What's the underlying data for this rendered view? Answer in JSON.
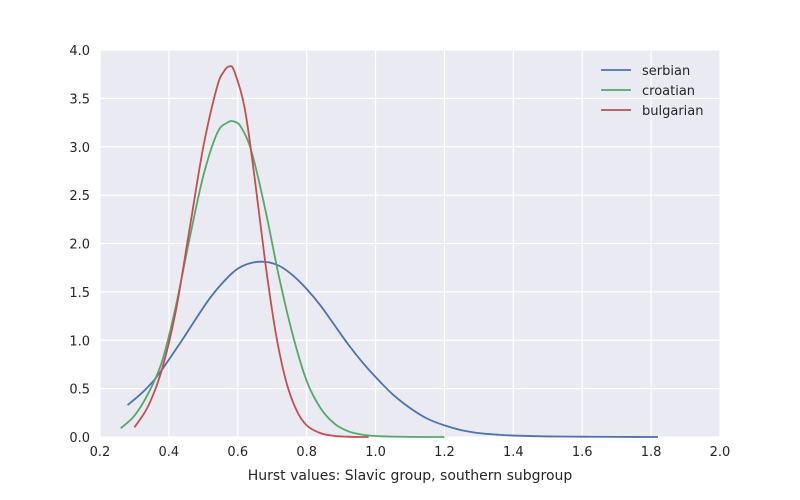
{
  "chart_data": {
    "type": "line",
    "title": "",
    "xlabel": "Hurst values: Slavic group, southern subgroup",
    "ylabel": "",
    "xlim": [
      0.2,
      2.0
    ],
    "ylim": [
      0.0,
      4.0
    ],
    "xticks": [
      "0.2",
      "0.4",
      "0.6",
      "0.8",
      "1.0",
      "1.2",
      "1.4",
      "1.6",
      "1.8",
      "2.0"
    ],
    "yticks": [
      "0.0",
      "0.5",
      "1.0",
      "1.5",
      "2.0",
      "2.5",
      "3.0",
      "3.5",
      "4.0"
    ],
    "grid": true,
    "background": "#eaeaf2",
    "legend_position": "top-right",
    "series": [
      {
        "name": "serbian",
        "color": "#4c72b0",
        "x": [
          0.28,
          0.32,
          0.36,
          0.4,
          0.44,
          0.48,
          0.52,
          0.56,
          0.6,
          0.64,
          0.68,
          0.72,
          0.76,
          0.8,
          0.84,
          0.88,
          0.92,
          0.96,
          1.0,
          1.05,
          1.1,
          1.15,
          1.2,
          1.25,
          1.3,
          1.35,
          1.4,
          1.5,
          1.6,
          1.7,
          1.82
        ],
        "y": [
          0.33,
          0.45,
          0.6,
          0.8,
          1.01,
          1.23,
          1.44,
          1.61,
          1.74,
          1.8,
          1.81,
          1.77,
          1.67,
          1.53,
          1.36,
          1.16,
          0.96,
          0.78,
          0.62,
          0.44,
          0.3,
          0.19,
          0.12,
          0.07,
          0.04,
          0.025,
          0.015,
          0.006,
          0.003,
          0.001,
          0.0
        ]
      },
      {
        "name": "croatian",
        "color": "#55a868",
        "x": [
          0.26,
          0.3,
          0.34,
          0.38,
          0.42,
          0.46,
          0.5,
          0.54,
          0.57,
          0.59,
          0.61,
          0.64,
          0.68,
          0.72,
          0.76,
          0.8,
          0.84,
          0.88,
          0.92,
          0.96,
          1.0,
          1.05,
          1.1,
          1.2
        ],
        "y": [
          0.09,
          0.22,
          0.45,
          0.78,
          1.35,
          2.05,
          2.7,
          3.14,
          3.25,
          3.26,
          3.2,
          2.95,
          2.35,
          1.65,
          1.05,
          0.58,
          0.3,
          0.14,
          0.06,
          0.025,
          0.01,
          0.004,
          0.001,
          0.0
        ]
      },
      {
        "name": "bulgarian",
        "color": "#c44e52",
        "x": [
          0.3,
          0.34,
          0.38,
          0.42,
          0.46,
          0.5,
          0.54,
          0.56,
          0.575,
          0.59,
          0.62,
          0.65,
          0.68,
          0.71,
          0.74,
          0.77,
          0.8,
          0.84,
          0.88,
          0.92,
          0.96,
          0.98
        ],
        "y": [
          0.1,
          0.32,
          0.7,
          1.3,
          2.15,
          3.0,
          3.62,
          3.78,
          3.83,
          3.78,
          3.4,
          2.65,
          1.8,
          1.08,
          0.58,
          0.28,
          0.12,
          0.04,
          0.012,
          0.003,
          0.0,
          0.0
        ]
      }
    ]
  }
}
